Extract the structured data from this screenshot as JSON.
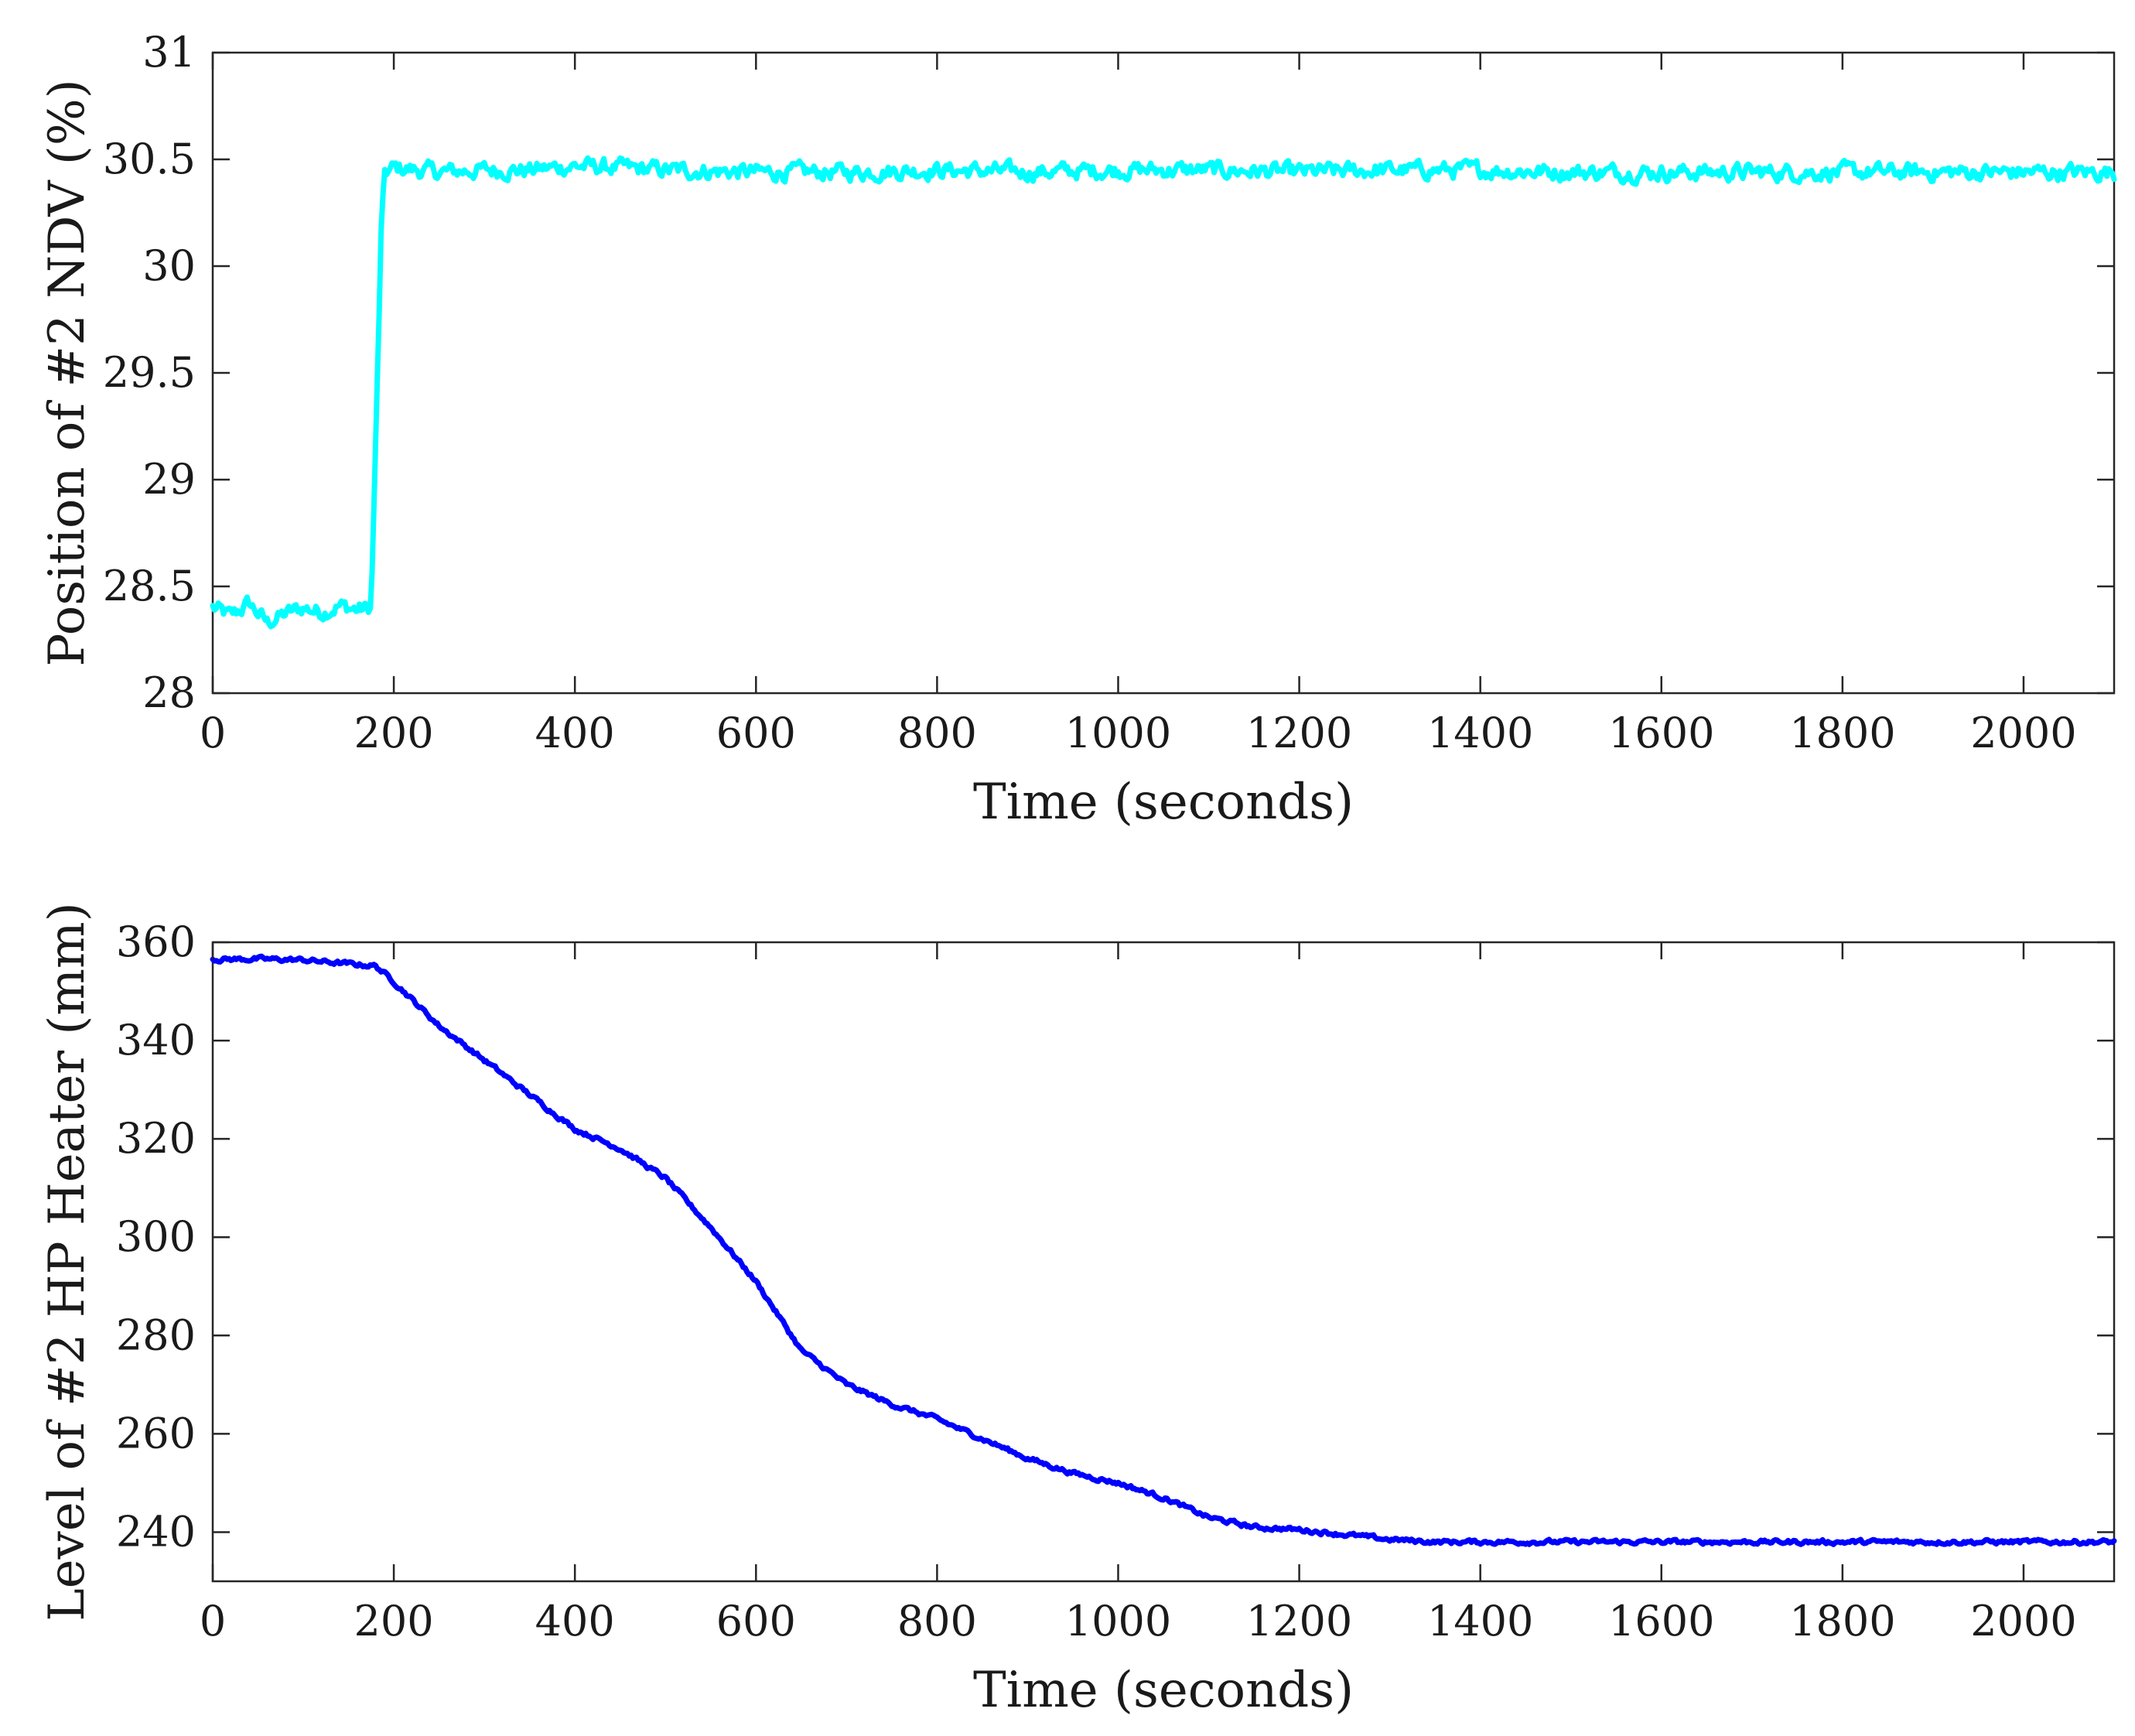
{
  "chart_data": [
    {
      "type": "line",
      "series": [
        {
          "name": "Position of #2 NDV",
          "color": "#00ffff",
          "x": [
            0,
            20,
            40,
            60,
            80,
            100,
            120,
            140,
            160,
            175,
            182,
            186,
            190,
            200,
            250,
            300,
            350,
            400,
            450,
            500,
            600,
            700,
            800,
            900,
            1000,
            1100,
            1200,
            1300,
            1400,
            1500,
            1600,
            1700,
            1800,
            1900,
            2000,
            2100
          ],
          "y": [
            28.4,
            28.36,
            28.42,
            28.33,
            28.37,
            28.4,
            28.38,
            28.41,
            28.39,
            28.4,
            29.48,
            30.15,
            30.43,
            30.46,
            30.44,
            30.45,
            30.45,
            30.47,
            30.46,
            30.45,
            30.44,
            30.44,
            30.45,
            30.44,
            30.45,
            30.45,
            30.44,
            30.45,
            30.45,
            30.44,
            30.44,
            30.44,
            30.44,
            30.44,
            30.44,
            30.44
          ],
          "noise": 0.035
        }
      ],
      "xlabel": "Time (seconds)",
      "ylabel": "Position of #2 NDV (%)",
      "xlim": [
        0,
        2100
      ],
      "ylim": [
        28,
        31
      ],
      "xticks": [
        0,
        200,
        400,
        600,
        800,
        1000,
        1200,
        1400,
        1600,
        1800,
        2000
      ],
      "xtick_labels": [
        "0",
        "200",
        "400",
        "600",
        "800",
        "1000",
        "1200",
        "1400",
        "1600",
        "1800",
        "2000"
      ],
      "yticks": [
        28,
        28.5,
        29,
        29.5,
        30,
        30.5,
        31
      ],
      "ytick_labels": [
        "28",
        "28.5",
        "29",
        "29.5",
        "30",
        "30.5",
        "31"
      ]
    },
    {
      "type": "line",
      "series": [
        {
          "name": "Level of #2 HP Heater",
          "color": "#0000ff",
          "x": [
            0,
            50,
            100,
            150,
            180,
            200,
            250,
            300,
            350,
            400,
            450,
            500,
            550,
            600,
            650,
            700,
            750,
            800,
            850,
            900,
            950,
            1000,
            1050,
            1100,
            1150,
            1200,
            1250,
            1300,
            1350,
            1400,
            1500,
            1600,
            1700,
            1800,
            1900,
            2000,
            2100
          ],
          "y": [
            356.5,
            356.6,
            356.4,
            355.6,
            355.2,
            352,
            343,
            336,
            329,
            322,
            318,
            312,
            302,
            291,
            277,
            270,
            266,
            263,
            259,
            255,
            252,
            250,
            247,
            243,
            241,
            240.5,
            239.5,
            238.5,
            238,
            238,
            238,
            238,
            238,
            238,
            238,
            238,
            238
          ],
          "noise": 0.4
        }
      ],
      "xlabel": "Time (seconds)",
      "ylabel": "Level of #2 HP Heater (mm)",
      "xlim": [
        0,
        2100
      ],
      "ylim": [
        230,
        360
      ],
      "xticks": [
        0,
        200,
        400,
        600,
        800,
        1000,
        1200,
        1400,
        1600,
        1800,
        2000
      ],
      "xtick_labels": [
        "0",
        "200",
        "400",
        "600",
        "800",
        "1000",
        "1200",
        "1400",
        "1600",
        "1800",
        "2000"
      ],
      "yticks": [
        240,
        260,
        280,
        300,
        320,
        340,
        360
      ],
      "ytick_labels": [
        "240",
        "260",
        "280",
        "300",
        "320",
        "340",
        "360"
      ]
    }
  ]
}
